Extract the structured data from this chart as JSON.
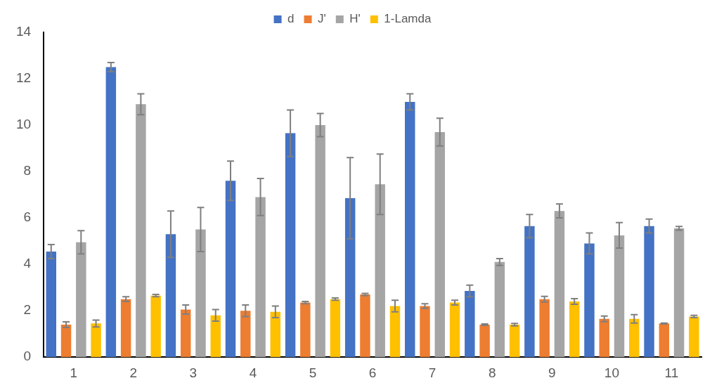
{
  "chart_data": {
    "type": "bar",
    "categories": [
      "1",
      "2",
      "3",
      "4",
      "5",
      "6",
      "7",
      "8",
      "9",
      "10",
      "11"
    ],
    "series": [
      {
        "name": "d",
        "color": "#4472c4",
        "values": [
          4.55,
          12.5,
          5.3,
          7.6,
          9.65,
          6.85,
          11.0,
          2.85,
          5.65,
          4.9,
          5.65
        ],
        "errors": [
          0.3,
          0.2,
          1.0,
          0.85,
          1.0,
          1.75,
          0.35,
          0.25,
          0.5,
          0.45,
          0.3
        ]
      },
      {
        "name": "J'",
        "color": "#ed7d31",
        "values": [
          1.4,
          2.5,
          2.05,
          2.0,
          2.35,
          2.7,
          2.2,
          1.4,
          2.5,
          1.65,
          1.45
        ],
        "errors": [
          0.12,
          0.1,
          0.2,
          0.25,
          0.05,
          0.05,
          0.1,
          0.03,
          0.12,
          0.12,
          0.02
        ]
      },
      {
        "name": "H'",
        "color": "#a5a5a5",
        "values": [
          4.95,
          10.9,
          5.5,
          6.9,
          10.0,
          7.45,
          9.7,
          4.1,
          6.3,
          5.25,
          5.55
        ],
        "errors": [
          0.5,
          0.45,
          0.95,
          0.8,
          0.5,
          1.3,
          0.6,
          0.15,
          0.3,
          0.55,
          0.08
        ]
      },
      {
        "name": "1-Lamda",
        "color": "#ffc000",
        "values": [
          1.45,
          2.65,
          1.8,
          1.95,
          2.5,
          2.2,
          2.35,
          1.4,
          2.4,
          1.65,
          1.75
        ],
        "errors": [
          0.15,
          0.05,
          0.25,
          0.25,
          0.05,
          0.25,
          0.1,
          0.05,
          0.12,
          0.18,
          0.05
        ]
      }
    ],
    "ylim": [
      0,
      14
    ],
    "yticks": [
      0,
      2,
      4,
      6,
      8,
      10,
      12,
      14
    ],
    "grid": false,
    "legend": "top"
  }
}
